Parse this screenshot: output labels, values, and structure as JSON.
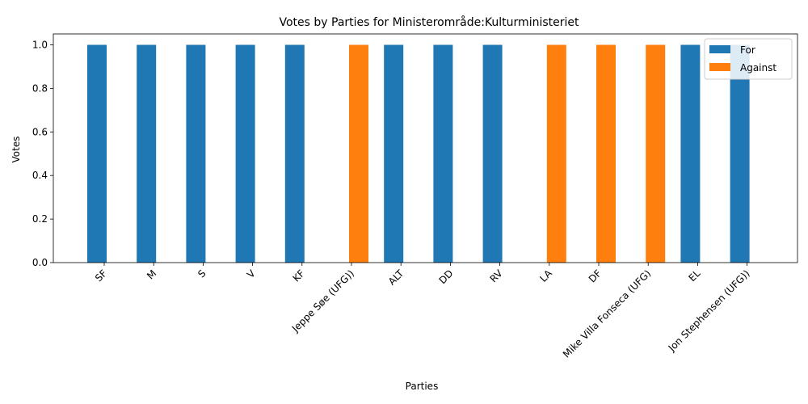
{
  "chart_data": {
    "type": "bar",
    "title": "Votes by Parties for Ministerområde:Kulturministeriet",
    "xlabel": "Parties",
    "ylabel": "Votes",
    "ylim": [
      0,
      1.05
    ],
    "yticks": [
      "0.0",
      "0.2",
      "0.4",
      "0.6",
      "0.8",
      "1.0"
    ],
    "categories": [
      "SF",
      "M",
      "S",
      "V",
      "KF",
      "Jeppe Søe (UFG))",
      "ALT",
      "DD",
      "RV",
      "LA",
      "DF",
      "Mike Villa Fonseca (UFG)",
      "EL",
      "Jon Stephensen (UFG))"
    ],
    "series": [
      {
        "name": "For",
        "color": "#1f77b4",
        "values": [
          1,
          1,
          1,
          1,
          1,
          0,
          1,
          1,
          1,
          0,
          0,
          0,
          1,
          1
        ]
      },
      {
        "name": "Against",
        "color": "#ff7f0e",
        "values": [
          0,
          0,
          0,
          0,
          0,
          1,
          0,
          0,
          0,
          1,
          1,
          1,
          0,
          0
        ]
      }
    ],
    "legend_position": "top-right",
    "grid": false
  }
}
